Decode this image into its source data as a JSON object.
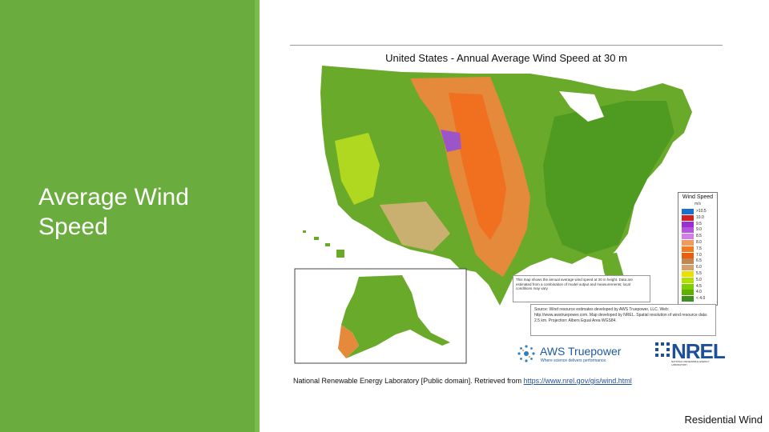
{
  "slide": {
    "title": "Average Wind Speed",
    "footer": "Residential Wind",
    "colors": {
      "sidebar": "#6aac3e",
      "stripe": "#7bbd4c",
      "link": "#1f4e9a"
    }
  },
  "map": {
    "title": "United States - Annual Average Wind Speed at 30 m",
    "legend": {
      "title": "Wind Speed",
      "unit": "m/s",
      "entries": [
        {
          "label": ">10.5",
          "color": "#1a6fd1"
        },
        {
          "label": "10.0",
          "color": "#d42020"
        },
        {
          "label": "9.5",
          "color": "#9b2fd1"
        },
        {
          "label": "9.0",
          "color": "#b455e0"
        },
        {
          "label": "8.5",
          "color": "#d07fe8"
        },
        {
          "label": "8.0",
          "color": "#f29a5c"
        },
        {
          "label": "7.5",
          "color": "#f47a20"
        },
        {
          "label": "7.0",
          "color": "#e85d10"
        },
        {
          "label": "6.5",
          "color": "#c08850"
        },
        {
          "label": "6.0",
          "color": "#d4a070"
        },
        {
          "label": "5.5",
          "color": "#e8e000"
        },
        {
          "label": "5.0",
          "color": "#b0e000"
        },
        {
          "label": "4.5",
          "color": "#7fcf00"
        },
        {
          "label": "4.0",
          "color": "#5fb000"
        },
        {
          "label": "< 4.0",
          "color": "#3f8f20"
        }
      ]
    },
    "note": "This map shows the annual average wind speed at 30 m height. Data are estimated from a combination of model output and measurements; local conditions may vary.",
    "source": "Source: Wind resource estimates developed by AWS Truepower, LLC. Web: http://www.awstruepower.com. Map developed by NREL. Spatial resolution of wind resource data: 2.5 km. Projection: Albers Equal Area WGS84.",
    "logos": {
      "aws_name": "AWS Truepower",
      "aws_tagline": "Where science delivers performance.",
      "nrel_name": "NREL",
      "nrel_tagline": "NATIONAL RENEWABLE ENERGY LABORATORY"
    }
  },
  "caption": {
    "text": "National Renewable Energy Laboratory [Public domain]. Retrieved from ",
    "link": "https://www.nrel.gov/gis/wind.html"
  }
}
